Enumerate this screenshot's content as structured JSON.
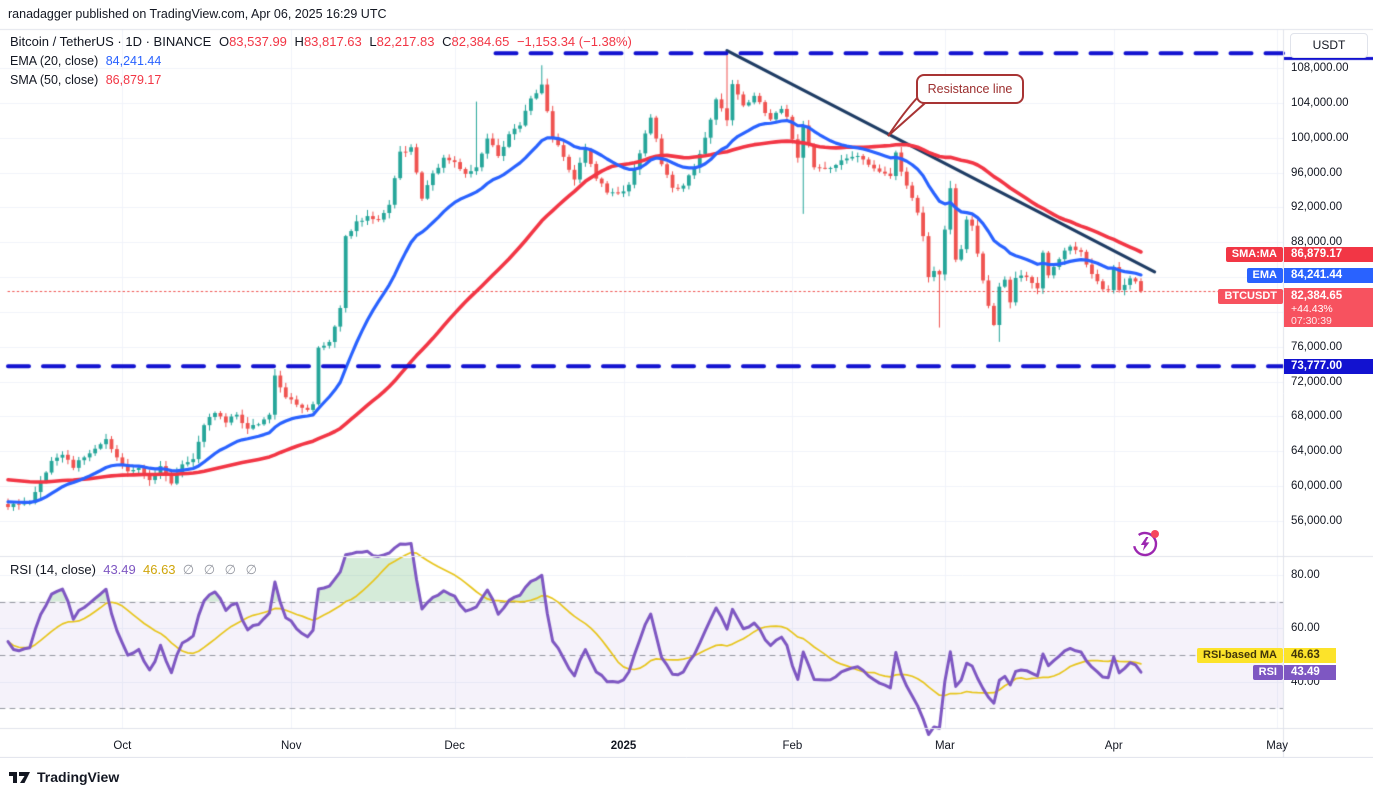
{
  "header": {
    "credit": "ranadagger published on TradingView.com, Apr 06, 2025 16:29 UTC"
  },
  "legend": {
    "title": "Bitcoin / TetherUS · 1D · BINANCE",
    "o_label": "O",
    "o": "83,537.99",
    "h_label": "H",
    "h": "83,817.63",
    "l_label": "L",
    "l": "82,217.83",
    "c_label": "C",
    "c": "82,384.65",
    "change": "−1,153.34 (−1.38%)",
    "ema_label": "EMA (20, close)",
    "ema_value": "84,241.44",
    "sma_label": "SMA (50, close)",
    "sma_value": "86,879.17"
  },
  "rsi_legend": {
    "label": "RSI (14, close)",
    "rsi_value": "43.49",
    "ma_value": "46.63",
    "hidden_values": "∅ ∅ ∅ ∅"
  },
  "annotation": {
    "text": "Resistance line"
  },
  "price_scale": {
    "currency_label": "USDT",
    "sma_tag": "SMA:MA",
    "sma_value": "86,879.17",
    "ema_tag": "EMA",
    "ema_value": "84,241.44",
    "btc_tag": "BTCUSDT",
    "btc_price": "82,384.65",
    "btc_change_pct": "+44.43%",
    "btc_countdown": "07:30:39",
    "support_value": "73,777.00",
    "rsi_ma_tag": "RSI-based MA",
    "rsi_ma_value": "46.63",
    "rsi_tag": "RSI",
    "rsi_value": "43.49"
  },
  "watermark": {
    "brand": "TradingView"
  },
  "colors": {
    "up": "#26a69a",
    "down": "#ef5350",
    "ema": "#2962ff",
    "sma": "#f23645",
    "level_blue": "#1212d0",
    "trendline": "#1e3c64",
    "current_dotted": "#ef5350",
    "rsi": "#7e57c2",
    "rsi_ma": "#e7c51d",
    "rsi_band_fill": "rgba(126,87,194,0.08)",
    "rsi_over_fill": "rgba(103,183,119,0.28)",
    "rsi_dash": "#9598a1",
    "grid": "#f0f3fa",
    "border": "#e0e3eb",
    "tag_sma_bg": "#f23645",
    "tag_ema_bg": "#2962ff",
    "tag_btc_bg": "#f7525f",
    "tag_support_bg": "#1212d0",
    "tag_rsi_bg": "#7e57c2",
    "tag_rsi_ma_bg": "#fce32a",
    "tag_rsi_ma_text": "#42360a"
  },
  "chart_data": {
    "type": "candlestick",
    "title": "Bitcoin / TetherUS · 1D · BINANCE",
    "timeframe": "1D",
    "ohlc_today": {
      "open": 83537.99,
      "high": 83817.63,
      "low": 82217.83,
      "close": 82384.65,
      "change": -1153.34,
      "change_pct": -1.38
    },
    "price_ticks": [
      108000,
      104000,
      100000,
      96000,
      92000,
      88000,
      84000,
      80000,
      76000,
      72000,
      68000,
      64000,
      60000,
      56000
    ],
    "rsi_ticks": [
      80,
      60,
      40
    ],
    "months": [
      {
        "label": "Oct",
        "day": 21
      },
      {
        "label": "Nov",
        "day": 52
      },
      {
        "label": "Dec",
        "day": 82
      },
      {
        "label": "2025",
        "day": 113,
        "bold": true
      },
      {
        "label": "Feb",
        "day": 144
      },
      {
        "label": "Mar",
        "day": 172
      },
      {
        "label": "Apr",
        "day": 203
      },
      {
        "label": "May",
        "day": 233
      }
    ],
    "close_anchors": [
      [
        0,
        57600
      ],
      [
        2,
        57900
      ],
      [
        4,
        58100
      ],
      [
        6,
        60600
      ],
      [
        8,
        62900
      ],
      [
        10,
        63600
      ],
      [
        12,
        62100
      ],
      [
        14,
        63300
      ],
      [
        16,
        64300
      ],
      [
        18,
        65400
      ],
      [
        20,
        63300
      ],
      [
        22,
        61700
      ],
      [
        24,
        62100
      ],
      [
        26,
        60700
      ],
      [
        28,
        62300
      ],
      [
        30,
        60300
      ],
      [
        32,
        62500
      ],
      [
        34,
        63100
      ],
      [
        36,
        67000
      ],
      [
        38,
        68400
      ],
      [
        40,
        67300
      ],
      [
        42,
        68200
      ],
      [
        44,
        66600
      ],
      [
        46,
        67100
      ],
      [
        48,
        68200
      ],
      [
        49,
        72700
      ],
      [
        51,
        70200
      ],
      [
        53,
        69350
      ],
      [
        55,
        68750
      ],
      [
        56,
        69400
      ],
      [
        57,
        75900
      ],
      [
        59,
        76550
      ],
      [
        61,
        80450
      ],
      [
        62,
        88700
      ],
      [
        64,
        90400
      ],
      [
        66,
        91000
      ],
      [
        68,
        90600
      ],
      [
        70,
        92300
      ],
      [
        72,
        98400
      ],
      [
        74,
        98900
      ],
      [
        76,
        93000
      ],
      [
        78,
        95900
      ],
      [
        80,
        97700
      ],
      [
        82,
        97200
      ],
      [
        84,
        95850
      ],
      [
        86,
        96600
      ],
      [
        88,
        99900
      ],
      [
        90,
        97900
      ],
      [
        92,
        100400
      ],
      [
        94,
        101400
      ],
      [
        96,
        104500
      ],
      [
        98,
        106100
      ],
      [
        100,
        100000
      ],
      [
        102,
        97800
      ],
      [
        104,
        95200
      ],
      [
        106,
        98600
      ],
      [
        108,
        95300
      ],
      [
        110,
        93700
      ],
      [
        112,
        93600
      ],
      [
        114,
        94600
      ],
      [
        116,
        98200
      ],
      [
        118,
        102300
      ],
      [
        120,
        96950
      ],
      [
        122,
        94250
      ],
      [
        124,
        94500
      ],
      [
        126,
        96600
      ],
      [
        128,
        100000
      ],
      [
        130,
        104400
      ],
      [
        132,
        102000
      ],
      [
        133,
        106150
      ],
      [
        135,
        103700
      ],
      [
        137,
        104800
      ],
      [
        140,
        102100
      ],
      [
        142,
        103300
      ],
      [
        143,
        102400
      ],
      [
        145,
        97700
      ],
      [
        146,
        101400
      ],
      [
        148,
        96600
      ],
      [
        150,
        96500
      ],
      [
        153,
        97400
      ],
      [
        155,
        97800
      ],
      [
        157,
        97500
      ],
      [
        160,
        96100
      ],
      [
        162,
        95600
      ],
      [
        163,
        98300
      ],
      [
        164,
        96100
      ],
      [
        167,
        91400
      ],
      [
        168,
        88700
      ],
      [
        169,
        84000
      ],
      [
        170,
        84700
      ],
      [
        171,
        84300
      ],
      [
        173,
        94200
      ],
      [
        174,
        86000
      ],
      [
        175,
        87200
      ],
      [
        176,
        90600
      ],
      [
        177,
        89900
      ],
      [
        178,
        86700
      ],
      [
        180,
        80700
      ],
      [
        181,
        78500
      ],
      [
        182,
        82900
      ],
      [
        183,
        83700
      ],
      [
        184,
        81100
      ],
      [
        185,
        83900
      ],
      [
        187,
        84000
      ],
      [
        189,
        82700
      ],
      [
        190,
        86800
      ],
      [
        191,
        84200
      ],
      [
        193,
        86050
      ],
      [
        195,
        87500
      ],
      [
        197,
        86900
      ],
      [
        199,
        84350
      ],
      [
        201,
        82600
      ],
      [
        202,
        82500
      ],
      [
        203,
        85150
      ],
      [
        204,
        82500
      ],
      [
        205,
        83100
      ],
      [
        206,
        83850
      ],
      [
        207,
        83500
      ],
      [
        208,
        82384.65
      ]
    ],
    "special_wicks": {
      "49": {
        "high": 72950
      },
      "86": {
        "high": 104100
      },
      "98": {
        "high": 108270
      },
      "132": {
        "high": 109588
      },
      "146": {
        "low": 91300
      },
      "171": {
        "low": 78248
      },
      "173": {
        "high": 95000
      },
      "182": {
        "low": 76606
      }
    },
    "indicators": {
      "ema_period": 20,
      "ema_last": 84241.44,
      "ema_seed": 58200,
      "sma_period": 50,
      "sma_last": 86879.17,
      "sma_preseed": 60800,
      "rsi_period": 14,
      "rsi_last": 43.49,
      "rsi_ma_last": 46.63
    },
    "levels": {
      "resistance": 109700,
      "resistance_start_day": 89.5,
      "support": 73777,
      "last_price": 82384.65
    },
    "trendline": {
      "from_day": 132,
      "from_price": 110000,
      "to_day": 210.5,
      "to_price": 84600
    },
    "rsi_bands": {
      "upper": 70,
      "middle": 50,
      "lower": 30
    }
  }
}
